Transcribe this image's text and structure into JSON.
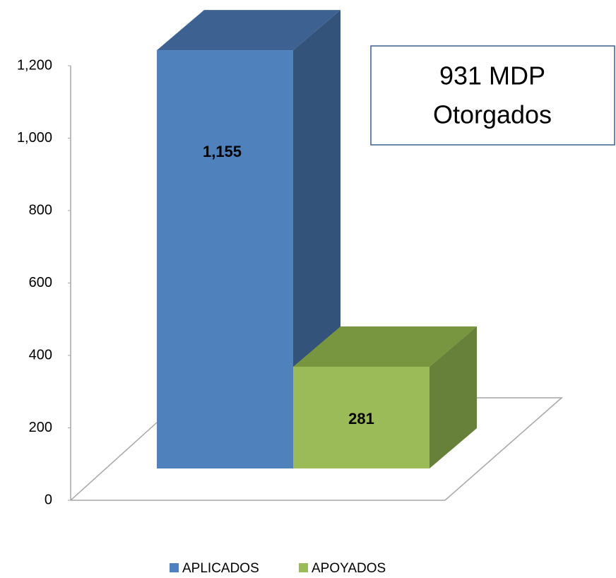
{
  "chart_data": {
    "type": "bar3d",
    "categories": [
      null
    ],
    "series": [
      {
        "name": "APLICADOS",
        "color": "#4f81bd",
        "side": "#34537a",
        "top": "#3d6190",
        "values": [
          1155
        ],
        "value_labels": [
          "1,155"
        ]
      },
      {
        "name": "APOYADOS",
        "color": "#9bbb59",
        "side": "#67803a",
        "top": "#78953f",
        "values": [
          281
        ]
      }
    ],
    "ylim": [
      0,
      1200
    ],
    "yticks": [
      0,
      200,
      400,
      600,
      800,
      {
        "value": 1000,
        "label": "1,000"
      },
      {
        "value": 1200,
        "label": "1,200"
      }
    ],
    "annotation": [
      "931 MDP",
      "Otorgados"
    ],
    "legend": "bottom",
    "grid": false
  }
}
